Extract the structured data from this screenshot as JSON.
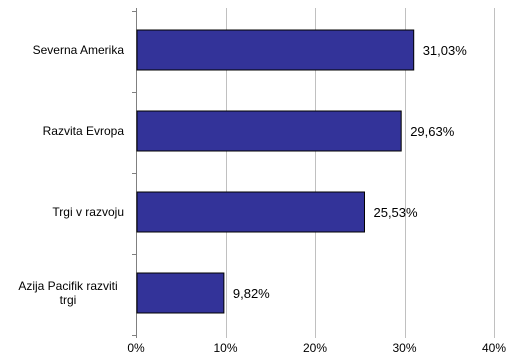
{
  "chart_data": {
    "type": "bar",
    "orientation": "horizontal",
    "categories": [
      "Severna Amerika",
      "Razvita Evropa",
      "Trgi v razvoju",
      "Azija Pacifik razviti trgi"
    ],
    "category_lines": [
      [
        "Severna Amerika"
      ],
      [
        "Razvita Evropa"
      ],
      [
        "Trgi v razvoju"
      ],
      [
        "Azija Pacifik razviti",
        "trgi"
      ]
    ],
    "values": [
      31.03,
      29.63,
      25.53,
      9.82
    ],
    "value_labels": [
      "31,03%",
      "29,63%",
      "25,53%",
      "9,82%"
    ],
    "xlim": [
      0,
      40
    ],
    "xticks": [
      0,
      10,
      20,
      30,
      40
    ],
    "xtick_labels": [
      "0%",
      "10%",
      "20%",
      "30%",
      "40%"
    ],
    "grid": "vertical",
    "legend": "none",
    "bar_color": "#333399",
    "bar_edge_color": "#000000",
    "grid_color": "#c0c0c0",
    "title": "",
    "xlabel": "",
    "ylabel": ""
  }
}
